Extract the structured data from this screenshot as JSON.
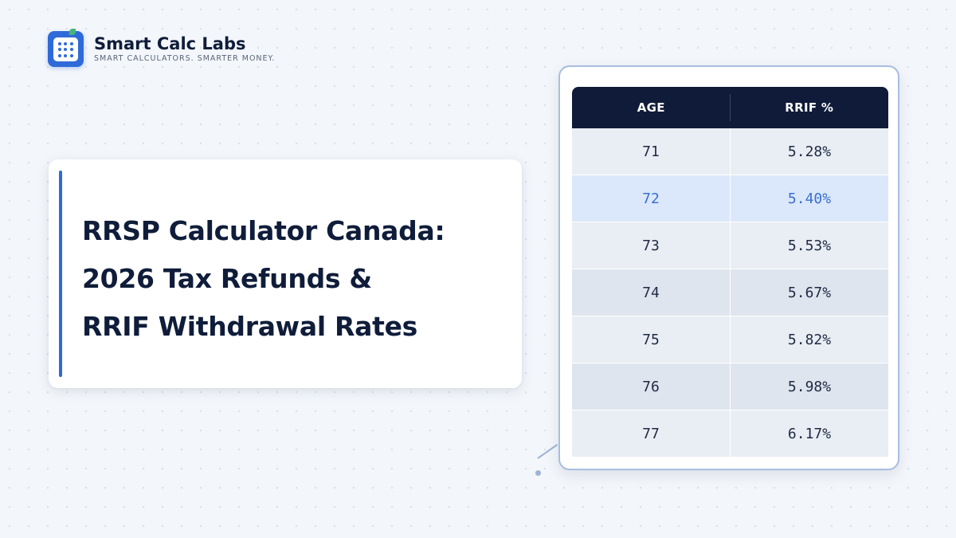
{
  "brand": {
    "name": "Smart Calc Labs",
    "tagline": "SMART CALCULATORS. SMARTER MONEY.",
    "logo_icon": "calculator-icon",
    "accent_color": "#2f6bd8"
  },
  "title": {
    "lines": [
      "RRSP Calculator Canada:",
      "2026 Tax Refunds &",
      "RRIF Withdrawal Rates"
    ]
  },
  "rrif_table": {
    "headers": {
      "age": "AGE",
      "rate": "RRIF %"
    },
    "highlight_color": "#3a6fd0",
    "header_color": "#0f1b38",
    "rows": [
      {
        "age": "71",
        "rate": "5.28%"
      },
      {
        "age": "72",
        "rate": "5.40%"
      },
      {
        "age": "73",
        "rate": "5.53%"
      },
      {
        "age": "74",
        "rate": "5.67%"
      },
      {
        "age": "75",
        "rate": "5.82%"
      },
      {
        "age": "76",
        "rate": "5.98%"
      },
      {
        "age": "77",
        "rate": "6.17%"
      }
    ]
  }
}
